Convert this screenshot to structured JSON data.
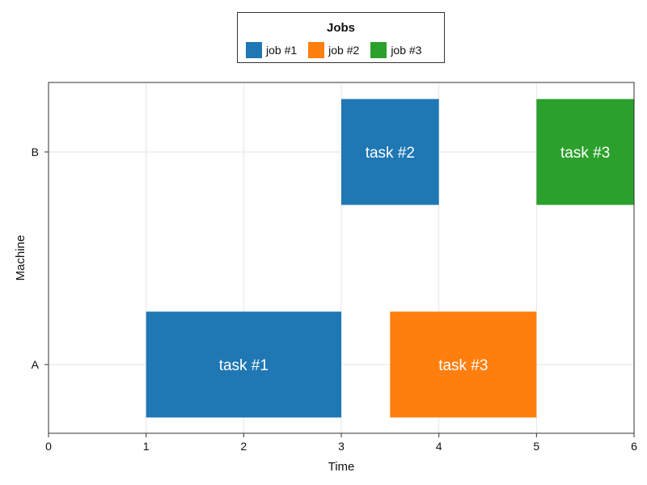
{
  "chart_data": {
    "type": "gantt",
    "xlabel": "Time",
    "ylabel": "Machine",
    "xlim": [
      0,
      6
    ],
    "xticks": [
      0,
      1,
      2,
      3,
      4,
      5,
      6
    ],
    "machines": [
      "A",
      "B"
    ],
    "grid": true,
    "legend": {
      "title": "Jobs",
      "placement": "top",
      "entries": [
        {
          "name": "job #1",
          "color": "#1f77b4"
        },
        {
          "name": "job #2",
          "color": "#ff7f0e"
        },
        {
          "name": "job #3",
          "color": "#2ca02c"
        }
      ]
    },
    "tasks": [
      {
        "machine": "A",
        "start": 1,
        "end": 3,
        "label": "task #1",
        "job": "job #1"
      },
      {
        "machine": "B",
        "start": 3,
        "end": 4,
        "label": "task #2",
        "job": "job #1"
      },
      {
        "machine": "A",
        "start": 3.5,
        "end": 5,
        "label": "task #3",
        "job": "job #2"
      },
      {
        "machine": "B",
        "start": 5,
        "end": 6,
        "label": "task #3",
        "job": "job #3"
      }
    ]
  }
}
